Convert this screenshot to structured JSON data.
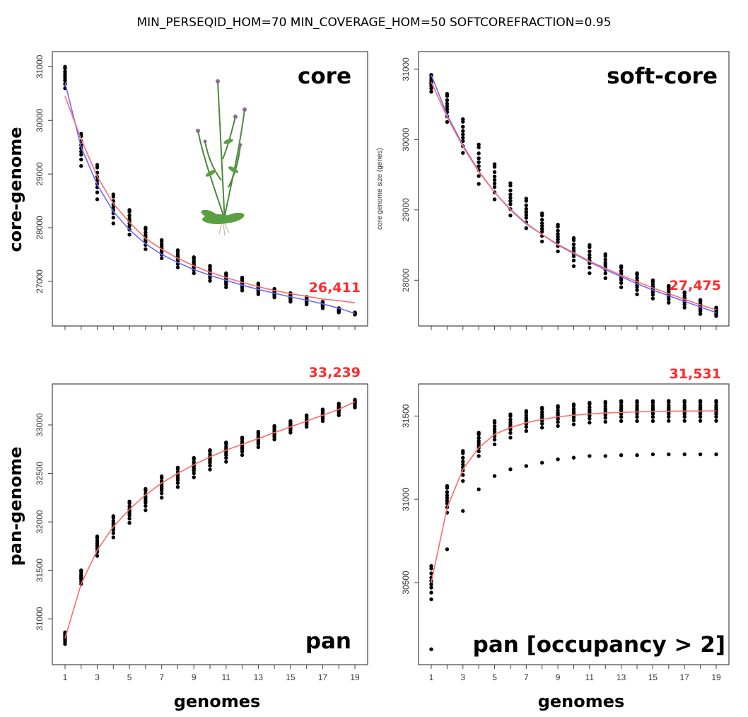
{
  "title": "MIN_PERSEQID_HOM=70 MIN_COVERAGE_HOM=50 SOFTCOREFRACTION=0.95",
  "row_labels": {
    "top": "core-genome",
    "bottom": "pan-genome"
  },
  "xlabel": "genomes",
  "colors": {
    "points": "#000000",
    "fit_red": "#ff6b6b",
    "fit_blue": "#6b6bff",
    "annotation": "#ff2a2a"
  },
  "decoration": {
    "top_left_illustration": "plant-illustration"
  },
  "chart_data": [
    {
      "type": "scatter",
      "panel_label": "core",
      "annotation": "26,411",
      "ylabel": "",
      "xlim": [
        1,
        19
      ],
      "ylim": [
        26300,
        31150
      ],
      "xticks_all": [
        1,
        2,
        3,
        4,
        5,
        6,
        7,
        8,
        9,
        10,
        11,
        12,
        13,
        14,
        15,
        16,
        17,
        18,
        19
      ],
      "xtick_labels": [],
      "yticks": [
        27000,
        28000,
        29000,
        30000,
        31000
      ],
      "x": [
        1,
        2,
        3,
        4,
        5,
        6,
        7,
        8,
        9,
        10,
        11,
        12,
        13,
        14,
        15,
        16,
        17,
        18,
        19
      ],
      "y_mean": [
        30800,
        29450,
        28850,
        28350,
        28100,
        27800,
        27600,
        27420,
        27300,
        27150,
        27020,
        26950,
        26860,
        26780,
        26700,
        26640,
        26560,
        26460,
        26400
      ],
      "y_spread": [
        200,
        300,
        320,
        270,
        230,
        200,
        170,
        160,
        150,
        140,
        130,
        120,
        100,
        80,
        80,
        70,
        60,
        40,
        20
      ],
      "fits": [
        {
          "color": "blue",
          "y": [
            30700,
            29500,
            28800,
            28300,
            27960,
            27700,
            27500,
            27350,
            27220,
            27110,
            27020,
            26930,
            26850,
            26780,
            26710,
            26650,
            26580,
            26500,
            26400
          ]
        },
        {
          "color": "red",
          "y": [
            30450,
            29650,
            28950,
            28450,
            28100,
            27800,
            27600,
            27430,
            27290,
            27170,
            27070,
            26980,
            26900,
            26830,
            26770,
            26720,
            26670,
            26640,
            26600
          ]
        }
      ]
    },
    {
      "type": "scatter",
      "panel_label": "soft-core",
      "annotation": "27,475",
      "ylabel": "core genome size (genes)",
      "xlim": [
        1,
        19
      ],
      "ylim": [
        27450,
        31150
      ],
      "xticks_all": [
        1,
        2,
        3,
        4,
        5,
        6,
        7,
        8,
        9,
        10,
        11,
        12,
        13,
        14,
        15,
        16,
        17,
        18,
        19
      ],
      "xtick_labels": [],
      "yticks": [
        28000,
        29000,
        30000,
        31000
      ],
      "x": [
        1,
        2,
        3,
        4,
        5,
        6,
        7,
        8,
        9,
        10,
        11,
        12,
        13,
        14,
        15,
        16,
        17,
        18,
        19
      ],
      "y_mean": [
        30800,
        30450,
        30050,
        29650,
        29400,
        29150,
        28950,
        28750,
        28600,
        28400,
        28300,
        28200,
        28050,
        27950,
        27870,
        27800,
        27720,
        27620,
        27550
      ],
      "y_spread": [
        120,
        200,
        240,
        280,
        250,
        230,
        210,
        200,
        190,
        200,
        200,
        170,
        150,
        150,
        130,
        120,
        110,
        100,
        60
      ],
      "fits": [
        {
          "color": "blue",
          "y": [
            30920,
            30350,
            29920,
            29550,
            29250,
            29000,
            28800,
            28650,
            28500,
            28380,
            28260,
            28150,
            28050,
            27950,
            27860,
            27780,
            27700,
            27620,
            27540
          ]
        },
        {
          "color": "red",
          "y": [
            30820,
            30320,
            29900,
            29540,
            29250,
            29010,
            28810,
            28650,
            28510,
            28390,
            28270,
            28170,
            28070,
            27980,
            27890,
            27810,
            27730,
            27650,
            27580
          ]
        }
      ]
    },
    {
      "type": "scatter",
      "panel_label": "pan",
      "annotation": "33,239",
      "ylabel": "",
      "xlim": [
        1,
        19
      ],
      "ylim": [
        30600,
        33350
      ],
      "xticks_all": [
        1,
        2,
        3,
        4,
        5,
        6,
        7,
        8,
        9,
        10,
        11,
        12,
        13,
        14,
        15,
        16,
        17,
        18,
        19
      ],
      "xtick_labels": [
        "1",
        "3",
        "5",
        "7",
        "9",
        "11",
        "13",
        "15",
        "17",
        "19"
      ],
      "yticks": [
        31000,
        31500,
        32000,
        32500,
        33000
      ],
      "x": [
        1,
        2,
        3,
        4,
        5,
        6,
        7,
        8,
        9,
        10,
        11,
        12,
        13,
        14,
        15,
        16,
        17,
        18,
        19
      ],
      "y_mean": [
        30800,
        31430,
        31750,
        31950,
        32100,
        32230,
        32360,
        32460,
        32560,
        32640,
        32720,
        32780,
        32850,
        32920,
        32980,
        33040,
        33100,
        33160,
        33220
      ],
      "y_spread": [
        60,
        70,
        100,
        110,
        110,
        110,
        110,
        100,
        100,
        100,
        100,
        90,
        80,
        70,
        60,
        60,
        60,
        60,
        40
      ],
      "fits": [
        {
          "color": "red",
          "y": [
            30800,
            31360,
            31710,
            31950,
            32130,
            32280,
            32400,
            32500,
            32590,
            32670,
            32740,
            32800,
            32860,
            32920,
            32980,
            33040,
            33100,
            33160,
            33239
          ]
        }
      ]
    },
    {
      "type": "scatter",
      "panel_label": "pan [occupancy > 2]",
      "annotation": "31,531",
      "ylabel": "",
      "xlim": [
        1,
        19
      ],
      "ylim": [
        30050,
        31650
      ],
      "xticks_all": [
        1,
        2,
        3,
        4,
        5,
        6,
        7,
        8,
        9,
        10,
        11,
        12,
        13,
        14,
        15,
        16,
        17,
        18,
        19
      ],
      "xtick_labels": [
        "1",
        "3",
        "5",
        "7",
        "9",
        "11",
        "13",
        "15",
        "17",
        "19"
      ],
      "yticks": [
        30500,
        31000,
        31500
      ],
      "x": [
        1,
        2,
        3,
        4,
        5,
        6,
        7,
        8,
        9,
        10,
        11,
        12,
        13,
        14,
        15,
        16,
        17,
        18,
        19
      ],
      "y_mean": [
        30500,
        31000,
        31200,
        31330,
        31400,
        31440,
        31470,
        31490,
        31500,
        31510,
        31520,
        31525,
        31530,
        31530,
        31530,
        31531,
        31531,
        31531,
        31531
      ],
      "y_spread": [
        100,
        80,
        90,
        70,
        70,
        70,
        60,
        60,
        60,
        60,
        60,
        60,
        60,
        60,
        60,
        60,
        60,
        60,
        60
      ],
      "lower_outliers": [
        30100,
        30700,
        30930,
        31060,
        31140,
        31180,
        31200,
        31220,
        31240,
        31250,
        31260,
        31260,
        31265,
        31265,
        31270,
        31270,
        31270,
        31270,
        31270
      ],
      "fits": [
        {
          "color": "red",
          "y": [
            30500,
            30950,
            31180,
            31310,
            31390,
            31430,
            31460,
            31480,
            31495,
            31505,
            31512,
            31518,
            31522,
            31525,
            31527,
            31529,
            31530,
            31530,
            31531
          ]
        }
      ]
    }
  ]
}
